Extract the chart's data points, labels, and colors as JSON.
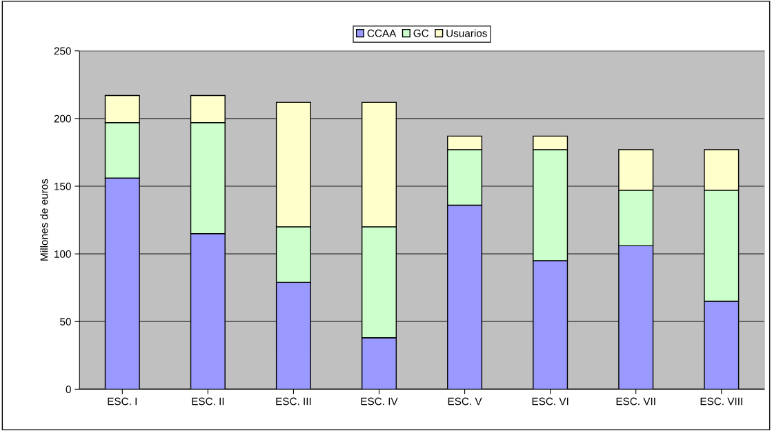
{
  "chart_data": {
    "type": "bar",
    "stacked": true,
    "ylabel": "Millones de euros",
    "categories": [
      "ESC. I",
      "ESC. II",
      "ESC. III",
      "ESC. IV",
      "ESC. V",
      "ESC. VI",
      "ESC. VII",
      "ESC. VIII"
    ],
    "series": [
      {
        "name": "CCAA",
        "color": "#9999ff",
        "values": [
          156,
          115,
          79,
          38,
          136,
          95,
          106,
          65
        ]
      },
      {
        "name": "GC",
        "color": "#ccffcc",
        "values": [
          41,
          82,
          41,
          82,
          41,
          82,
          41,
          82
        ]
      },
      {
        "name": "Usuarios",
        "color": "#ffffcc",
        "values": [
          20,
          20,
          92,
          92,
          10,
          10,
          30,
          30
        ]
      }
    ],
    "ylim": [
      0,
      250
    ],
    "yticks": [
      0,
      50,
      100,
      150,
      200,
      250
    ],
    "grid": "y",
    "legend": "top"
  }
}
